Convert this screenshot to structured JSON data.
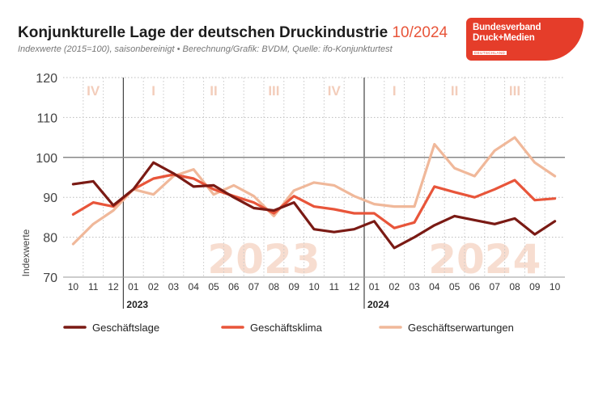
{
  "header": {
    "title": "Konjunkturelle Lage der deutschen Druckindustrie",
    "date": "10/2024",
    "subtitle": "Indexwerte (2015=100), saisonbereinigt • Berechnung/Grafik: BVDM, Quelle: ifo-Konjunkturtest"
  },
  "logo": {
    "line1": "Bundesverband",
    "line2": "Druck+Medien",
    "line3": "DEUTSCHLAND"
  },
  "colors": {
    "geschaeftslage": "#7a1a14",
    "geschaeftsklima": "#e8553a",
    "geschaeftserwartungen": "#f0b89a",
    "watermark": "#f7ddd0",
    "quarter": "#f3cdbb"
  },
  "chart_data": {
    "type": "line",
    "title": "Konjunkturelle Lage der deutschen Druckindustrie 10/2024",
    "xlabel": "",
    "ylabel": "Indexwerte",
    "ylim": [
      70,
      120
    ],
    "yticks": [
      "70",
      "80",
      "90",
      "100",
      "110",
      "120"
    ],
    "reference_line": 100,
    "x": [
      "10",
      "11",
      "12",
      "01",
      "02",
      "03",
      "04",
      "05",
      "06",
      "07",
      "08",
      "09",
      "10",
      "11",
      "12",
      "01",
      "02",
      "03",
      "04",
      "05",
      "06",
      "07",
      "08",
      "09",
      "10"
    ],
    "year_labels": [
      {
        "label": "2023",
        "start_index": 3
      },
      {
        "label": "2024",
        "start_index": 15
      }
    ],
    "quarters": [
      {
        "label": "IV",
        "start_index": 0,
        "end_index": 2
      },
      {
        "label": "I",
        "start_index": 3,
        "end_index": 5
      },
      {
        "label": "II",
        "start_index": 6,
        "end_index": 8
      },
      {
        "label": "III",
        "start_index": 9,
        "end_index": 11
      },
      {
        "label": "IV",
        "start_index": 12,
        "end_index": 14
      },
      {
        "label": "I",
        "start_index": 15,
        "end_index": 17
      },
      {
        "label": "II",
        "start_index": 18,
        "end_index": 20
      },
      {
        "label": "III",
        "start_index": 21,
        "end_index": 23
      }
    ],
    "watermarks": [
      {
        "label": "2023",
        "center_index": 9.5
      },
      {
        "label": "2024",
        "center_index": 20.5
      }
    ],
    "legend_position": "bottom",
    "grid": true,
    "series": [
      {
        "name": "Geschäftslage",
        "key": "geschaeftslage",
        "values": [
          93.3,
          94.0,
          88.0,
          92.0,
          98.7,
          96.0,
          92.7,
          93.0,
          90.0,
          87.3,
          86.7,
          88.7,
          82.0,
          81.3,
          82.0,
          84.0,
          77.3,
          80.0,
          83.0,
          85.3,
          84.3,
          83.3,
          84.7,
          80.7,
          84.0
        ]
      },
      {
        "name": "Geschäftsklima",
        "key": "geschaeftsklima",
        "values": [
          85.7,
          88.7,
          87.7,
          92.0,
          94.7,
          95.7,
          94.7,
          92.0,
          90.3,
          88.7,
          86.0,
          90.3,
          87.7,
          87.0,
          86.0,
          86.0,
          82.3,
          83.7,
          92.7,
          91.3,
          90.0,
          92.0,
          94.3,
          89.3,
          89.7
        ]
      },
      {
        "name": "Geschäftserwartungen",
        "key": "geschaeftserwartungen",
        "values": [
          78.3,
          83.3,
          86.7,
          92.0,
          90.7,
          95.3,
          97.0,
          90.7,
          93.0,
          90.3,
          85.3,
          91.7,
          93.7,
          93.0,
          90.3,
          88.3,
          87.7,
          87.7,
          103.3,
          97.3,
          95.3,
          101.7,
          105.0,
          98.7,
          95.3
        ]
      }
    ]
  }
}
